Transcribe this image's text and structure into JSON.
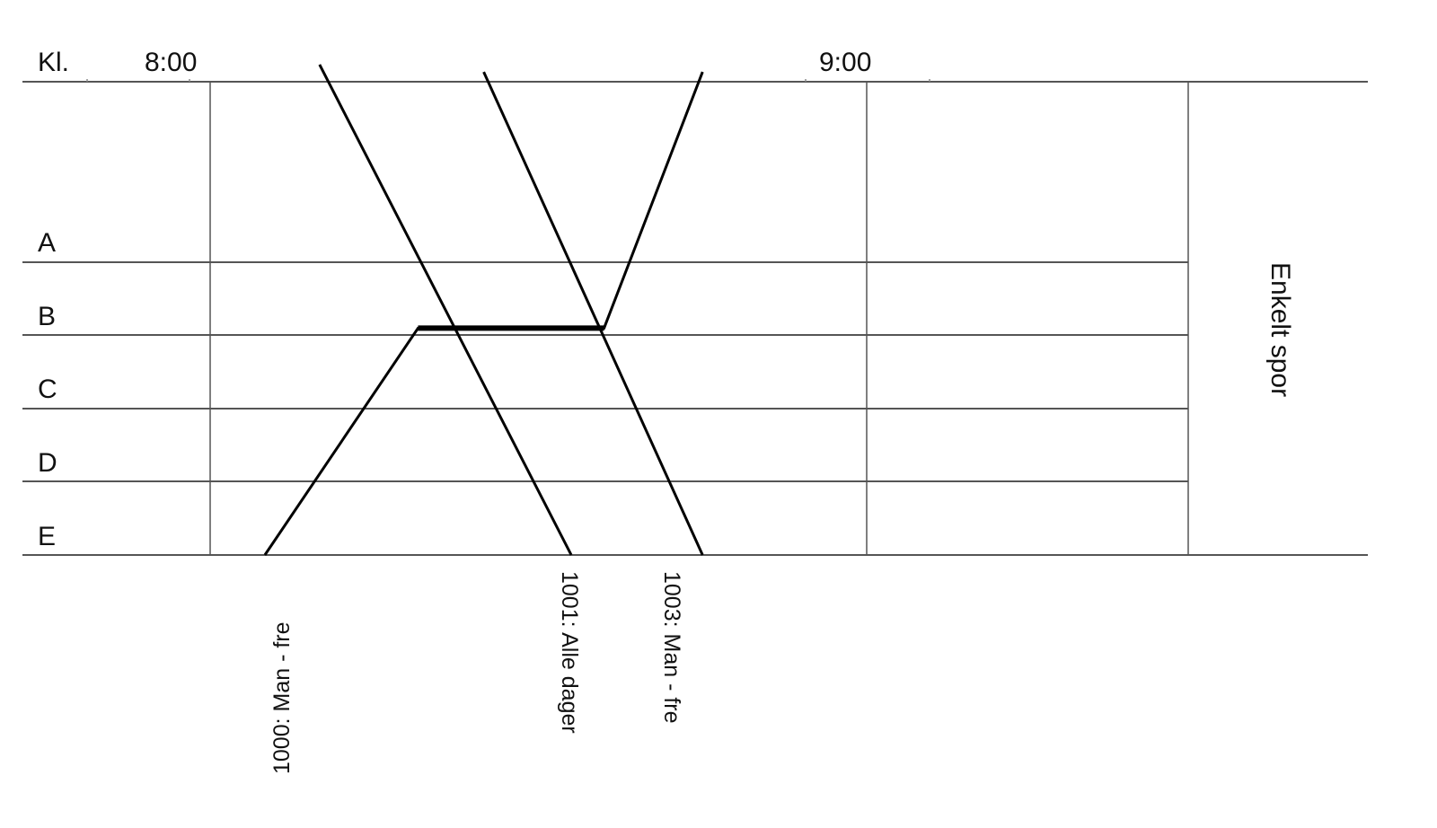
{
  "chart_data": {
    "type": "line",
    "xlabel": "Kl.",
    "x_ticks": [
      "8:00",
      "9:00"
    ],
    "stations": [
      "A",
      "B",
      "C",
      "D",
      "E"
    ],
    "side_label": "Enkelt spor",
    "grid": true,
    "series": [
      {
        "name": "1000: Man - fre",
        "points": [
          [
            "8:05",
            0
          ],
          [
            "8:19",
            3.1
          ],
          [
            "8:36",
            3.1
          ],
          [
            "8:45",
            6.6
          ]
        ]
      },
      {
        "name": "1001: Alle dager",
        "points": [
          [
            "8:10",
            6.7
          ],
          [
            "8:33",
            0
          ]
        ]
      },
      {
        "name": "1003: Man - fre",
        "points": [
          [
            "8:25",
            6.6
          ],
          [
            "8:45",
            0
          ]
        ]
      }
    ],
    "line_color": "#000000",
    "grid_color": "#555555"
  }
}
